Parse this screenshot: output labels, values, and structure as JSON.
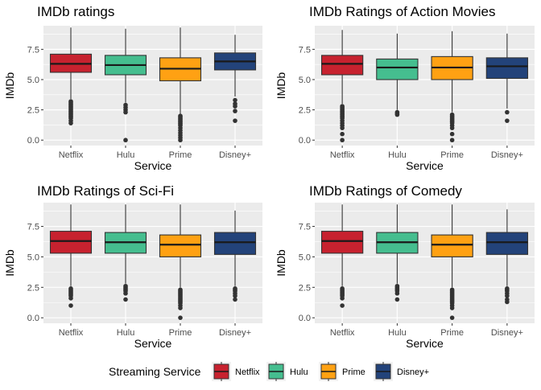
{
  "legend": {
    "title": "Streaming Service",
    "items": [
      {
        "label": "Netflix",
        "color": "#C7222F"
      },
      {
        "label": "Hulu",
        "color": "#45BE8F"
      },
      {
        "label": "Prime",
        "color": "#FFA113"
      },
      {
        "label": "Disney+",
        "color": "#23437A"
      }
    ]
  },
  "chart_data": [
    {
      "type": "box",
      "title": "IMDb ratings",
      "xlabel": "Service",
      "ylabel": "IMDb",
      "categories": [
        "Netflix",
        "Hulu",
        "Prime",
        "Disney+"
      ],
      "yticks": [
        "0.0",
        "2.5",
        "5.0",
        "7.5"
      ],
      "ylim": [
        -0.45,
        9.45
      ],
      "boxes": [
        {
          "q1": 5.6,
          "median": 6.3,
          "q3": 7.1,
          "whisker_low": 3.4,
          "whisker_high": 9.3,
          "outliers": [
            3.2,
            3.1,
            3.0,
            2.9,
            2.8,
            2.7,
            2.6,
            2.5,
            2.4,
            2.3,
            2.2,
            2.1,
            2.0,
            1.9,
            1.8,
            1.6,
            1.4
          ]
        },
        {
          "q1": 5.4,
          "median": 6.2,
          "q3": 7.0,
          "whisker_low": 3.1,
          "whisker_high": 9.2,
          "outliers": [
            2.9,
            2.7,
            2.5,
            2.3,
            0.0
          ]
        },
        {
          "q1": 4.9,
          "median": 5.9,
          "q3": 6.8,
          "whisker_low": 2.1,
          "whisker_high": 9.3,
          "outliers": [
            2.0,
            1.9,
            1.8,
            1.7,
            1.6,
            1.5,
            1.4,
            1.3,
            1.2,
            1.0,
            0.8,
            0.6,
            0.4,
            0.2,
            0.0
          ]
        },
        {
          "q1": 5.8,
          "median": 6.5,
          "q3": 7.2,
          "whisker_low": 3.6,
          "whisker_high": 8.7,
          "outliers": [
            3.3,
            3.0,
            2.8,
            2.4,
            1.6
          ]
        }
      ]
    },
    {
      "type": "box",
      "title": "IMDb Ratings of Action Movies",
      "xlabel": "Service",
      "ylabel": "IMDb",
      "categories": [
        "Netflix",
        "Hulu",
        "Prime",
        "Disney+"
      ],
      "yticks": [
        "0.0",
        "2.5",
        "5.0",
        "7.5"
      ],
      "ylim": [
        -0.45,
        9.45
      ],
      "boxes": [
        {
          "q1": 5.4,
          "median": 6.3,
          "q3": 7.0,
          "whisker_low": 3.0,
          "whisker_high": 9.1,
          "outliers": [
            2.8,
            2.7,
            2.6,
            2.5,
            2.4,
            2.3,
            2.2,
            2.1,
            2.0,
            1.9,
            1.8,
            1.6,
            1.4,
            1.2,
            1.0,
            0.5,
            0.0
          ]
        },
        {
          "q1": 5.0,
          "median": 6.0,
          "q3": 6.7,
          "whisker_low": 2.5,
          "whisker_high": 8.8,
          "outliers": [
            2.3,
            2.2,
            2.1
          ]
        },
        {
          "q1": 5.0,
          "median": 6.0,
          "q3": 6.9,
          "whisker_low": 2.3,
          "whisker_high": 9.0,
          "outliers": [
            2.1,
            2.0,
            1.9,
            1.8,
            1.7,
            1.6,
            1.5,
            1.4,
            1.2,
            1.0,
            0.5,
            0.0
          ]
        },
        {
          "q1": 5.1,
          "median": 6.1,
          "q3": 6.8,
          "whisker_low": 2.6,
          "whisker_high": 8.8,
          "outliers": [
            2.3,
            1.6
          ]
        }
      ]
    },
    {
      "type": "box",
      "title": "IMDb Ratings of Sci-Fi",
      "xlabel": "Service",
      "ylabel": "IMDb",
      "categories": [
        "Netflix",
        "Hulu",
        "Prime",
        "Disney+"
      ],
      "yticks": [
        "0.0",
        "2.5",
        "5.0",
        "7.5"
      ],
      "ylim": [
        -0.45,
        9.45
      ],
      "boxes": [
        {
          "q1": 5.3,
          "median": 6.3,
          "q3": 7.1,
          "whisker_low": 2.6,
          "whisker_high": 9.3,
          "outliers": [
            2.4,
            2.3,
            2.2,
            2.1,
            2.0,
            1.9,
            1.8,
            1.6,
            1.0
          ]
        },
        {
          "q1": 5.3,
          "median": 6.2,
          "q3": 7.0,
          "whisker_low": 2.8,
          "whisker_high": 9.3,
          "outliers": [
            2.6,
            2.5,
            2.4,
            2.3,
            2.2,
            2.0,
            1.5
          ]
        },
        {
          "q1": 5.0,
          "median": 6.0,
          "q3": 6.8,
          "whisker_low": 2.5,
          "whisker_high": 9.3,
          "outliers": [
            2.3,
            2.2,
            2.1,
            2.0,
            1.9,
            1.8,
            1.7,
            1.6,
            1.5,
            1.4,
            1.3,
            1.2,
            1.0,
            0.8,
            0.0
          ]
        },
        {
          "q1": 5.2,
          "median": 6.2,
          "q3": 7.0,
          "whisker_low": 2.6,
          "whisker_high": 8.8,
          "outliers": [
            2.4,
            2.3,
            2.2,
            2.0,
            1.8,
            1.5
          ]
        }
      ]
    },
    {
      "type": "box",
      "title": "IMDb Ratings of Comedy",
      "xlabel": "Service",
      "ylabel": "IMDb",
      "categories": [
        "Netflix",
        "Hulu",
        "Prime",
        "Disney+"
      ],
      "yticks": [
        "0.0",
        "2.5",
        "5.0",
        "7.5"
      ],
      "ylim": [
        -0.45,
        9.45
      ],
      "boxes": [
        {
          "q1": 5.3,
          "median": 6.3,
          "q3": 7.1,
          "whisker_low": 2.6,
          "whisker_high": 9.3,
          "outliers": [
            2.4,
            2.3,
            2.2,
            2.1,
            2.0,
            1.9,
            1.8,
            1.6,
            1.0
          ]
        },
        {
          "q1": 5.3,
          "median": 6.2,
          "q3": 7.0,
          "whisker_low": 2.8,
          "whisker_high": 9.3,
          "outliers": [
            2.6,
            2.5,
            2.4,
            2.3,
            2.2,
            2.0,
            1.5
          ]
        },
        {
          "q1": 5.0,
          "median": 6.0,
          "q3": 6.8,
          "whisker_low": 2.5,
          "whisker_high": 9.3,
          "outliers": [
            2.3,
            2.2,
            2.1,
            2.0,
            1.9,
            1.8,
            1.7,
            1.6,
            1.5,
            1.4,
            1.3,
            1.2,
            1.0,
            0.8,
            0.0
          ]
        },
        {
          "q1": 5.2,
          "median": 6.2,
          "q3": 7.0,
          "whisker_low": 2.6,
          "whisker_high": 8.9,
          "outliers": [
            2.4,
            2.3,
            2.2,
            2.0,
            1.8,
            1.5,
            1.3
          ]
        }
      ]
    }
  ]
}
